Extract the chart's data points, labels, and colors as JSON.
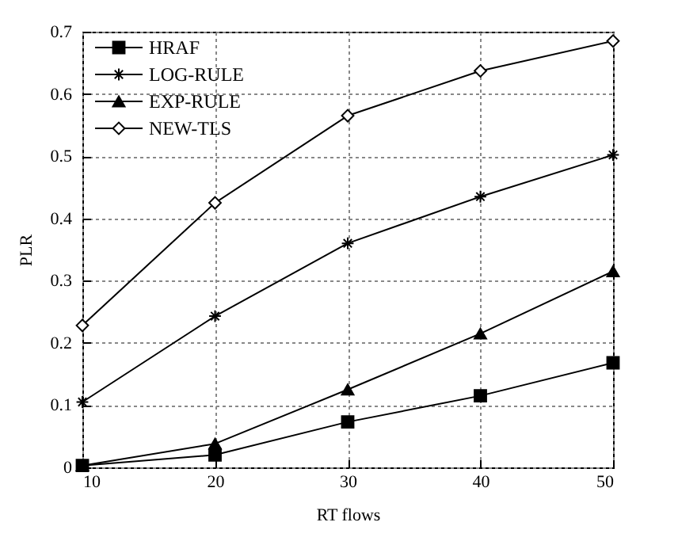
{
  "chart_data": {
    "type": "line",
    "xlabel": "RT flows",
    "ylabel": "PLR",
    "x": [
      10,
      20,
      30,
      40,
      50
    ],
    "series": [
      {
        "name": "HRAF",
        "color": "#000000",
        "marker": "square",
        "values": [
          0.003,
          0.02,
          0.073,
          0.115,
          0.168
        ]
      },
      {
        "name": "LOG-RULE",
        "color": "#000000",
        "marker": "cross",
        "values": [
          0.105,
          0.243,
          0.36,
          0.435,
          0.502
        ]
      },
      {
        "name": "EXP-RULE",
        "color": "#000000",
        "marker": "triangle",
        "values": [
          0.003,
          0.038,
          0.125,
          0.215,
          0.315
        ]
      },
      {
        "name": "NEW-TLS",
        "color": "#000000",
        "marker": "diamond",
        "values": [
          0.228,
          0.425,
          0.565,
          0.637,
          0.685
        ]
      }
    ],
    "xlim": [
      10,
      50
    ],
    "xticks": [
      10,
      20,
      30,
      40,
      50
    ],
    "ylim": [
      0,
      0.7
    ],
    "yticks": [
      0,
      0.1,
      0.2,
      0.3,
      0.4,
      0.5,
      0.6,
      0.7
    ],
    "grid": true,
    "legend": "top left",
    "line_style": "solid"
  }
}
